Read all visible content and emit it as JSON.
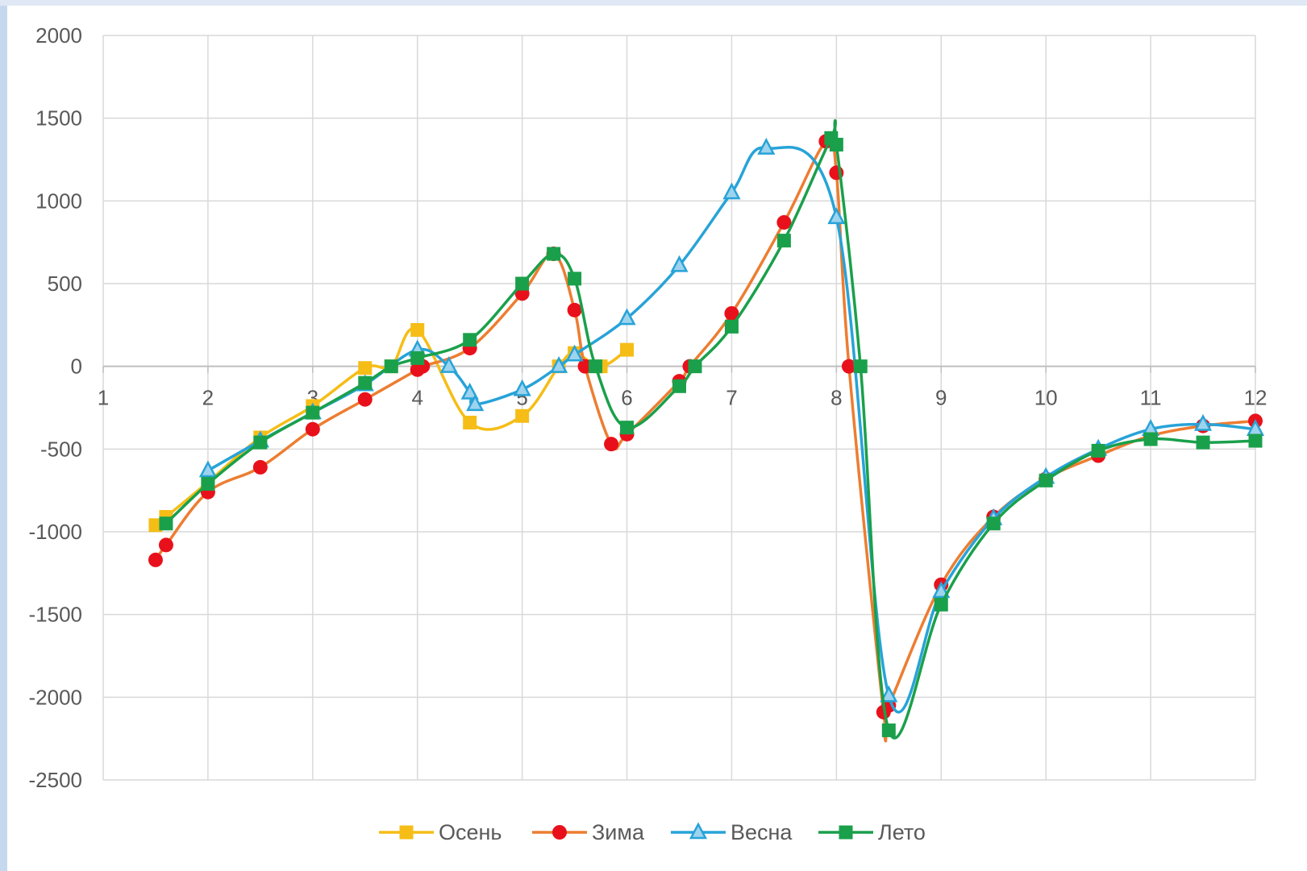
{
  "chart_data": {
    "type": "line",
    "smooth": true,
    "grid": true,
    "legend_position": "bottom",
    "title": "",
    "xlabel": "",
    "ylabel": "",
    "xlim": [
      1,
      12
    ],
    "ylim": [
      -2500,
      2000
    ],
    "x_ticks": [
      {
        "value": 1,
        "label": "1"
      },
      {
        "value": 2,
        "label": "2"
      },
      {
        "value": 3,
        "label": "3"
      },
      {
        "value": 4,
        "label": "4"
      },
      {
        "value": 5,
        "label": "5"
      },
      {
        "value": 6,
        "label": "6"
      },
      {
        "value": 7,
        "label": "7"
      },
      {
        "value": 8,
        "label": "8"
      },
      {
        "value": 9,
        "label": "9"
      },
      {
        "value": 10,
        "label": "10"
      },
      {
        "value": 11,
        "label": "11"
      },
      {
        "value": 12,
        "label": "12"
      }
    ],
    "y_ticks": [
      {
        "value": 2000,
        "label": "2000"
      },
      {
        "value": 1500,
        "label": "1500"
      },
      {
        "value": 1000,
        "label": "1000"
      },
      {
        "value": 500,
        "label": "500"
      },
      {
        "value": 0,
        "label": "0"
      },
      {
        "value": -500,
        "label": "-500"
      },
      {
        "value": -1000,
        "label": "-1000"
      },
      {
        "value": -1500,
        "label": "-1500"
      },
      {
        "value": -2000,
        "label": "-2000"
      },
      {
        "value": -2500,
        "label": "-2500"
      }
    ],
    "series": [
      {
        "name": "Осень",
        "color": "#f5bd16",
        "marker": "square",
        "points": [
          [
            1.5,
            -960
          ],
          [
            1.6,
            -910
          ],
          [
            2,
            -700
          ],
          [
            2.5,
            -430
          ],
          [
            3,
            -240
          ],
          [
            3.5,
            -10
          ],
          [
            3.75,
            0
          ],
          [
            4,
            220
          ],
          [
            4.5,
            -340
          ],
          [
            5,
            -300
          ],
          [
            5.35,
            0
          ],
          [
            5.5,
            80
          ],
          [
            5.75,
            0
          ],
          [
            6,
            100
          ]
        ]
      },
      {
        "name": "Зима",
        "color": "#ed7d31",
        "marker": "circle",
        "marker_color": "#e8111b",
        "points": [
          [
            1.5,
            -1170
          ],
          [
            1.6,
            -1080
          ],
          [
            2,
            -760
          ],
          [
            2.5,
            -610
          ],
          [
            3,
            -380
          ],
          [
            3.5,
            -200
          ],
          [
            4,
            -20
          ],
          [
            4.05,
            0
          ],
          [
            4.5,
            110
          ],
          [
            5,
            440
          ],
          [
            5.3,
            680
          ],
          [
            5.5,
            340
          ],
          [
            5.6,
            0
          ],
          [
            5.85,
            -470
          ],
          [
            6,
            -410
          ],
          [
            6.5,
            -90
          ],
          [
            6.6,
            0
          ],
          [
            7,
            320
          ],
          [
            7.5,
            870
          ],
          [
            7.9,
            1360
          ],
          [
            8,
            1170
          ],
          [
            8.12,
            0
          ],
          [
            8.45,
            -2090
          ],
          [
            8.5,
            -2050
          ],
          [
            9,
            -1320
          ],
          [
            9.5,
            -910
          ],
          [
            10,
            -680
          ],
          [
            10.5,
            -540
          ],
          [
            11,
            -420
          ],
          [
            11.5,
            -360
          ],
          [
            12,
            -330
          ]
        ]
      },
      {
        "name": "Весна",
        "color": "#27a3d8",
        "marker": "triangle",
        "points": [
          [
            2,
            -630
          ],
          [
            2.5,
            -450
          ],
          [
            3,
            -280
          ],
          [
            3.5,
            -110
          ],
          [
            4,
            100
          ],
          [
            4.3,
            0
          ],
          [
            4.5,
            -160
          ],
          [
            4.55,
            -230
          ],
          [
            5,
            -140
          ],
          [
            5.35,
            0
          ],
          [
            5.5,
            70
          ],
          [
            6,
            290
          ],
          [
            6.5,
            610
          ],
          [
            7,
            1050
          ],
          [
            7.33,
            1320
          ],
          [
            8,
            900
          ],
          [
            8.5,
            -1990
          ],
          [
            9,
            -1360
          ],
          [
            9.5,
            -920
          ],
          [
            10,
            -670
          ],
          [
            10.5,
            -500
          ],
          [
            11,
            -380
          ],
          [
            11.5,
            -350
          ],
          [
            12,
            -380
          ]
        ]
      },
      {
        "name": "Лето",
        "color": "#1aa04b",
        "marker": "square",
        "points": [
          [
            1.6,
            -950
          ],
          [
            2,
            -710
          ],
          [
            2.5,
            -460
          ],
          [
            3,
            -280
          ],
          [
            3.5,
            -100
          ],
          [
            3.75,
            0
          ],
          [
            4,
            50
          ],
          [
            4.5,
            160
          ],
          [
            5,
            500
          ],
          [
            5.3,
            680
          ],
          [
            5.5,
            530
          ],
          [
            5.7,
            0
          ],
          [
            6,
            -370
          ],
          [
            6.5,
            -120
          ],
          [
            6.65,
            0
          ],
          [
            7,
            240
          ],
          [
            7.5,
            760
          ],
          [
            7.95,
            1380
          ],
          [
            8,
            1340
          ],
          [
            8.23,
            0
          ],
          [
            8.5,
            -2200
          ],
          [
            9,
            -1440
          ],
          [
            9.5,
            -950
          ],
          [
            10,
            -690
          ],
          [
            10.5,
            -510
          ],
          [
            11,
            -440
          ],
          [
            11.5,
            -460
          ],
          [
            12,
            -450
          ]
        ]
      }
    ]
  }
}
